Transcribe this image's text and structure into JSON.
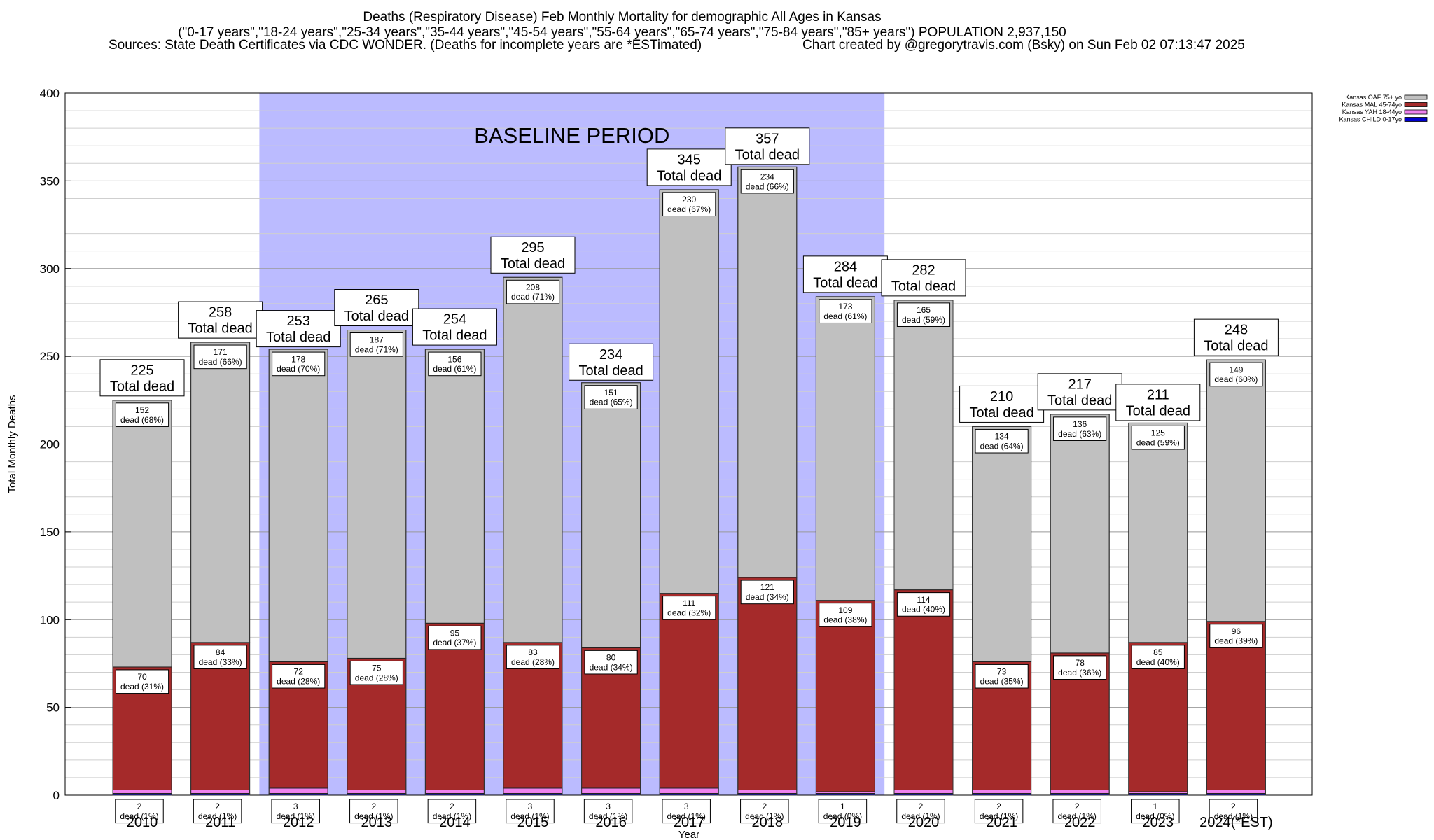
{
  "title": "Deaths (Respiratory Disease) Feb Monthly Mortality for demographic All Ages in Kansas",
  "subtitle": "(\"0-17 years\",\"18-24 years\",\"25-34 years\",\"35-44 years\",\"45-54 years\",\"55-64 years\",\"65-74 years\",\"75-84 years\",\"85+ years\") POPULATION 2,937,150",
  "sources": "Sources: State Death Certificates via CDC WONDER. (Deaths for incomplete years are *ESTimated)",
  "credit": "Chart created by @gregorytravis.com (Bsky) on Sun Feb 02 07:13:47 2025",
  "colors": {
    "oaf": "#c0c0c0",
    "mal": "#a52a2a",
    "yah": "#ee82ee",
    "child": "#0000cd",
    "baseline": "#bbbbff"
  },
  "chart_data": {
    "type": "bar",
    "stacked": true,
    "xlabel": "Year",
    "ylabel": "Total Monthly Deaths",
    "ylim": [
      0,
      400
    ],
    "yticks": [
      0,
      50,
      100,
      150,
      200,
      250,
      300,
      350,
      400
    ],
    "grid": true,
    "legend_position": "top-right",
    "baseline_label": "BASELINE PERIOD",
    "baseline_range": [
      "2012",
      "2019"
    ],
    "total_label_suffix": "Total dead",
    "categories": [
      "2010",
      "2011",
      "2012",
      "2013",
      "2014",
      "2015",
      "2016",
      "2017",
      "2018",
      "2019",
      "2020",
      "2021",
      "2022",
      "2023",
      "2024(*EST)"
    ],
    "totals": [
      225,
      258,
      253,
      265,
      254,
      295,
      234,
      345,
      357,
      284,
      282,
      210,
      217,
      211,
      248
    ],
    "series": [
      {
        "name": "Kansas CHILD 0-17yo",
        "color_key": "child",
        "values": [
          1,
          1,
          1,
          1,
          1,
          1,
          1,
          1,
          1,
          1,
          1,
          1,
          1,
          1,
          1
        ]
      },
      {
        "name": "Kansas YAH 18-44yo",
        "color_key": "yah",
        "values": [
          2,
          2,
          3,
          2,
          2,
          3,
          3,
          3,
          2,
          1,
          2,
          2,
          2,
          1,
          2
        ],
        "labels": [
          "dead (1%)",
          "dead (1%)",
          "dead (1%)",
          "dead (1%)",
          "dead (1%)",
          "dead (1%)",
          "dead (1%)",
          "dead (1%)",
          "dead (1%)",
          "dead (0%)",
          "dead (1%)",
          "dead (1%)",
          "dead (1%)",
          "dead (0%)",
          "dead (1%)"
        ]
      },
      {
        "name": "Kansas MAL 45-74yo",
        "color_key": "mal",
        "values": [
          70,
          84,
          72,
          75,
          95,
          83,
          80,
          111,
          121,
          109,
          114,
          73,
          78,
          85,
          96
        ],
        "labels": [
          "dead (31%)",
          "dead (33%)",
          "dead (28%)",
          "dead (28%)",
          "dead (37%)",
          "dead (28%)",
          "dead (34%)",
          "dead (32%)",
          "dead (34%)",
          "dead (38%)",
          "dead (40%)",
          "dead (35%)",
          "dead (36%)",
          "dead (40%)",
          "dead (39%)"
        ]
      },
      {
        "name": "Kansas OAF 75+ yo",
        "color_key": "oaf",
        "values": [
          152,
          171,
          178,
          187,
          156,
          208,
          151,
          230,
          234,
          173,
          165,
          134,
          136,
          125,
          149
        ],
        "labels": [
          "dead (68%)",
          "dead (66%)",
          "dead (70%)",
          "dead (71%)",
          "dead (61%)",
          "dead (71%)",
          "dead (65%)",
          "dead (67%)",
          "dead (66%)",
          "dead (61%)",
          "dead (59%)",
          "dead (64%)",
          "dead (63%)",
          "dead (59%)",
          "dead (60%)"
        ]
      }
    ],
    "legend_order": [
      "Kansas OAF 75+ yo",
      "Kansas MAL 45-74yo",
      "Kansas YAH 18-44yo",
      "Kansas CHILD 0-17yo"
    ]
  }
}
